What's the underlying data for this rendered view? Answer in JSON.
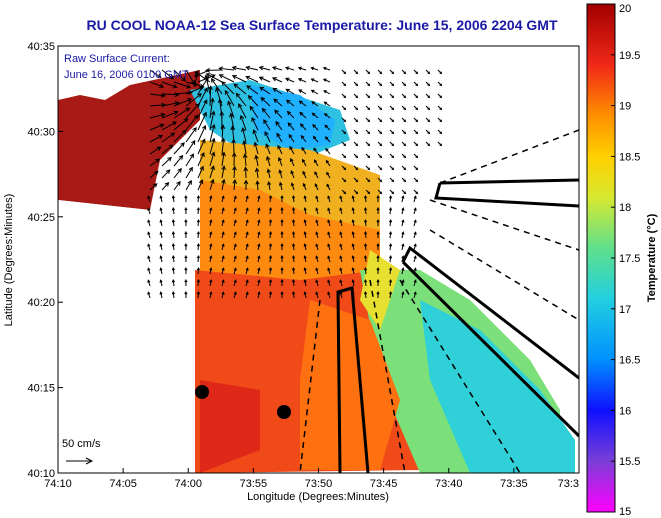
{
  "title": "RU COOL  NOAA-12  Sea Surface Temperature:  June 15, 2006 2204 GMT",
  "overlay": {
    "line1": "Raw Surface Current:",
    "line2": "June 16, 2006 0100 GMT",
    "scale_label": "50 cm/s"
  },
  "axes": {
    "xlabel": "Longitude (Degrees:Minutes)",
    "ylabel": "Latitude (Degrees:Minutes)",
    "xticks": [
      "74:10",
      "74:05",
      "74:00",
      "73:55",
      "73:50",
      "73:45",
      "73:40",
      "73:35",
      "73:3"
    ],
    "yticks": [
      "40:35",
      "40:30",
      "40:25",
      "40:20",
      "40:15",
      "40:10"
    ]
  },
  "colorbar": {
    "title": "Temperature (°C)",
    "ticks": [
      "20",
      "19.5",
      "19",
      "18.5",
      "18",
      "17.5",
      "17",
      "16.5",
      "16",
      "15.5",
      "15"
    ]
  },
  "colors": {
    "title": "#1a1aa6",
    "land": "#ffffff",
    "vector": "#000000"
  }
}
